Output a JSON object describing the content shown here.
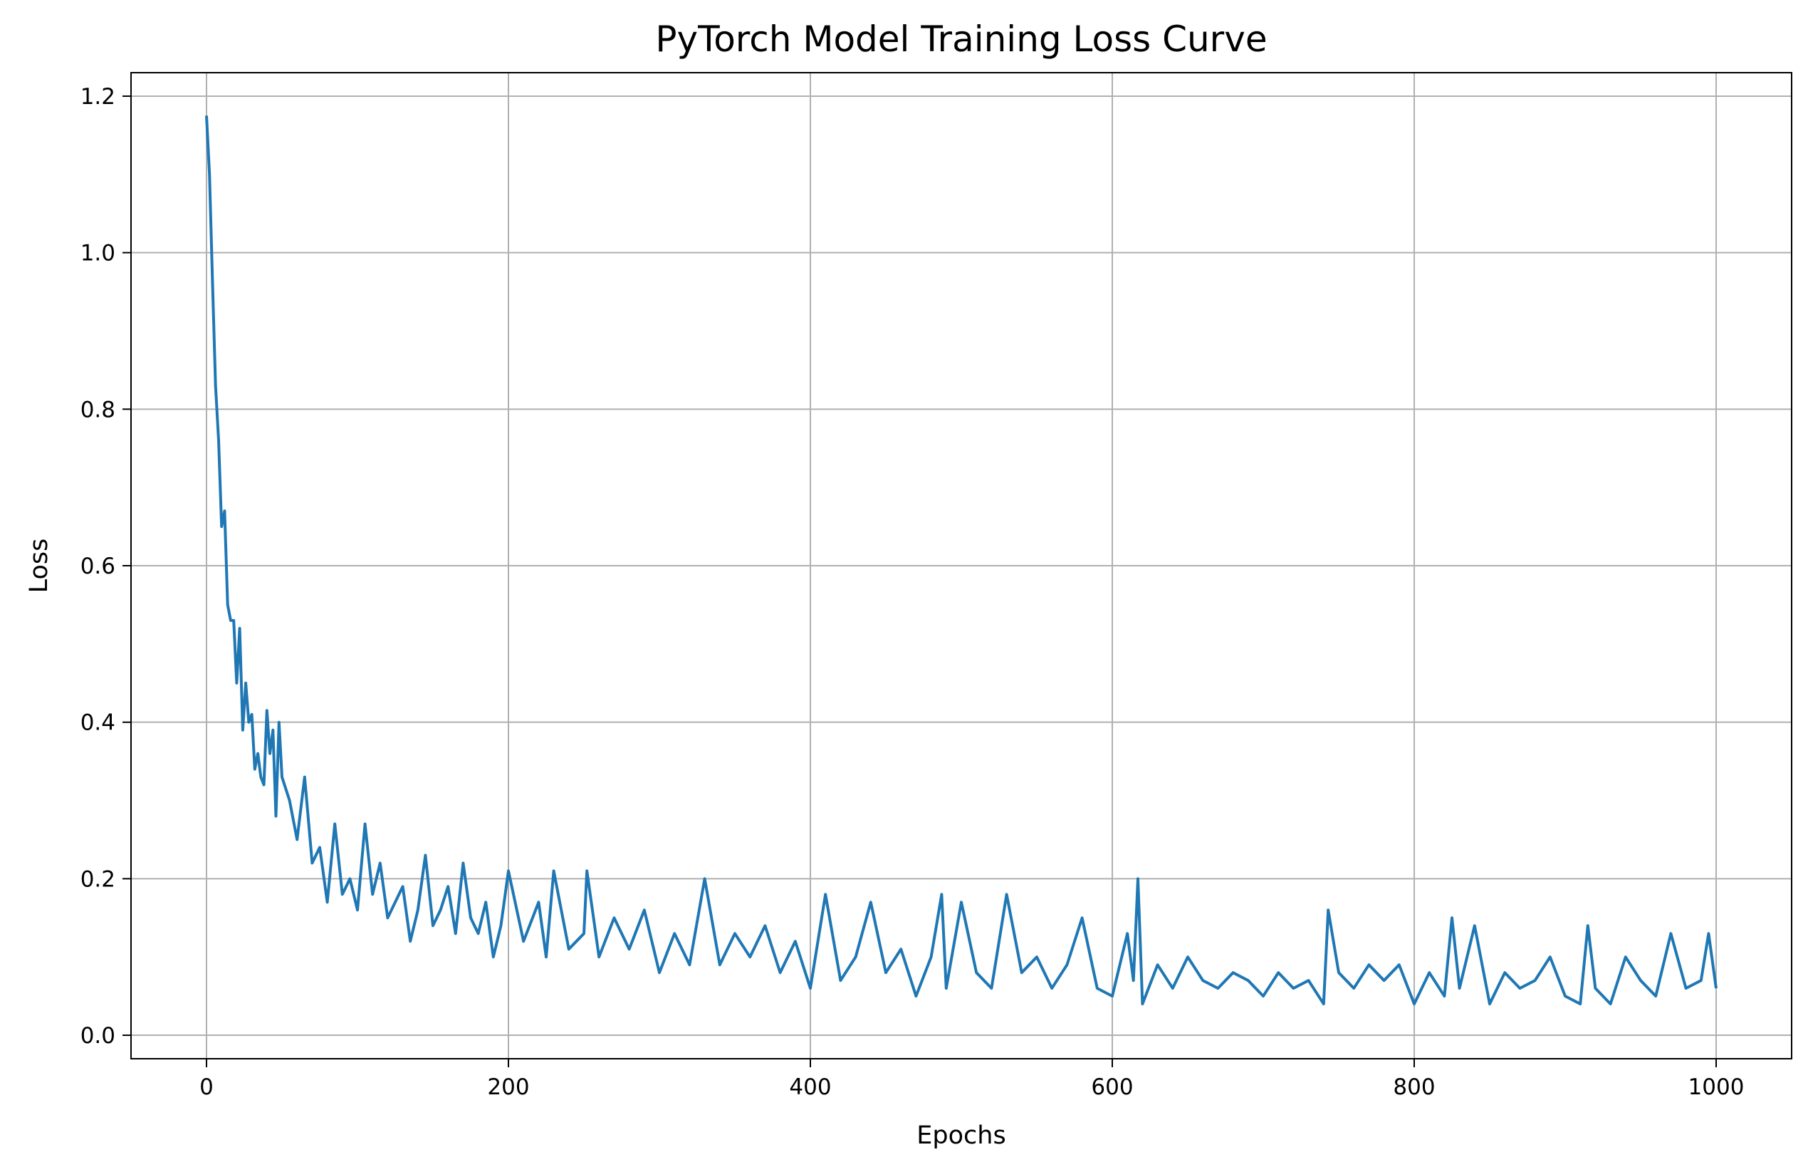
{
  "chart_data": {
    "type": "line",
    "title": "PyTorch Model Training Loss Curve",
    "xlabel": "Epochs",
    "ylabel": "Loss",
    "xlim": [
      -50,
      1050
    ],
    "ylim": [
      -0.03,
      1.23
    ],
    "x_ticks": [
      0,
      200,
      400,
      600,
      800,
      1000
    ],
    "y_ticks": [
      0.0,
      0.2,
      0.4,
      0.6,
      0.8,
      1.0,
      1.2
    ],
    "x_tick_labels": [
      "0",
      "200",
      "400",
      "600",
      "800",
      "1000"
    ],
    "y_tick_labels": [
      "0.0",
      "0.2",
      "0.4",
      "0.6",
      "0.8",
      "1.0",
      "1.2"
    ],
    "grid": true,
    "legend": "none",
    "colors": {
      "line": "#1f77b4",
      "grid": "#b0b0b0",
      "axes": "#000000"
    },
    "series": [
      {
        "x": [
          0,
          2,
          4,
          6,
          8,
          10,
          12,
          14,
          16,
          18,
          20,
          22,
          24,
          26,
          28,
          30,
          32,
          34,
          36,
          38,
          40,
          42,
          44,
          46,
          48,
          50,
          55,
          60,
          65,
          70,
          75,
          80,
          85,
          90,
          95,
          100,
          105,
          110,
          115,
          120,
          125,
          130,
          135,
          140,
          145,
          150,
          155,
          160,
          165,
          170,
          175,
          180,
          185,
          190,
          195,
          200,
          210,
          220,
          225,
          230,
          240,
          250,
          252,
          260,
          270,
          280,
          290,
          300,
          310,
          320,
          330,
          340,
          350,
          360,
          370,
          380,
          390,
          400,
          410,
          420,
          430,
          440,
          450,
          460,
          470,
          480,
          487,
          490,
          500,
          510,
          520,
          530,
          540,
          550,
          560,
          570,
          580,
          590,
          600,
          610,
          614,
          617,
          620,
          630,
          640,
          650,
          660,
          670,
          680,
          690,
          700,
          710,
          720,
          730,
          740,
          743,
          750,
          760,
          770,
          780,
          790,
          800,
          810,
          820,
          825,
          830,
          840,
          850,
          860,
          870,
          880,
          890,
          900,
          910,
          915,
          920,
          930,
          940,
          950,
          960,
          970,
          980,
          990,
          995,
          1000
        ],
        "y": [
          1.175,
          1.1,
          0.96,
          0.83,
          0.76,
          0.65,
          0.67,
          0.55,
          0.53,
          0.53,
          0.45,
          0.52,
          0.39,
          0.45,
          0.4,
          0.41,
          0.34,
          0.36,
          0.33,
          0.32,
          0.415,
          0.36,
          0.39,
          0.28,
          0.4,
          0.33,
          0.3,
          0.25,
          0.33,
          0.22,
          0.24,
          0.17,
          0.27,
          0.18,
          0.2,
          0.16,
          0.27,
          0.18,
          0.22,
          0.15,
          0.17,
          0.19,
          0.12,
          0.16,
          0.23,
          0.14,
          0.16,
          0.19,
          0.13,
          0.22,
          0.15,
          0.13,
          0.17,
          0.1,
          0.14,
          0.21,
          0.12,
          0.17,
          0.1,
          0.21,
          0.11,
          0.13,
          0.21,
          0.1,
          0.15,
          0.11,
          0.16,
          0.08,
          0.13,
          0.09,
          0.2,
          0.09,
          0.13,
          0.1,
          0.14,
          0.08,
          0.12,
          0.06,
          0.18,
          0.07,
          0.1,
          0.17,
          0.08,
          0.11,
          0.05,
          0.1,
          0.18,
          0.06,
          0.17,
          0.08,
          0.06,
          0.18,
          0.08,
          0.1,
          0.06,
          0.09,
          0.15,
          0.06,
          0.05,
          0.13,
          0.07,
          0.2,
          0.04,
          0.09,
          0.06,
          0.1,
          0.07,
          0.06,
          0.08,
          0.07,
          0.05,
          0.08,
          0.06,
          0.07,
          0.04,
          0.16,
          0.08,
          0.06,
          0.09,
          0.07,
          0.09,
          0.04,
          0.08,
          0.05,
          0.15,
          0.06,
          0.14,
          0.04,
          0.08,
          0.06,
          0.07,
          0.1,
          0.05,
          0.04,
          0.14,
          0.06,
          0.04,
          0.1,
          0.07,
          0.05,
          0.13,
          0.06,
          0.07,
          0.13,
          0.06
        ]
      }
    ]
  }
}
